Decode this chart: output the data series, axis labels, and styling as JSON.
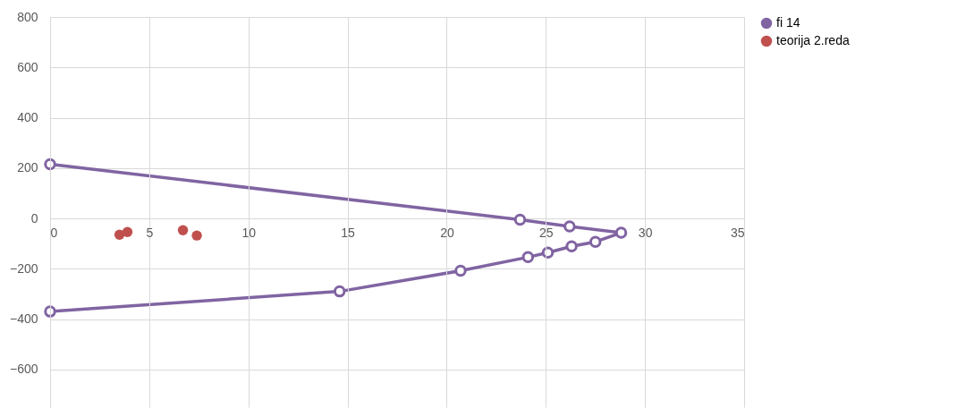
{
  "chart_data": {
    "type": "line",
    "xlim": [
      0,
      35
    ],
    "xticks": [
      0,
      5,
      10,
      15,
      20,
      25,
      30,
      35
    ],
    "ylim": [
      -750,
      800
    ],
    "yticks": [
      -600,
      -400,
      -200,
      0,
      200,
      400,
      600,
      800
    ],
    "grid": true,
    "legend": "right",
    "series": [
      {
        "name": "fi 14",
        "marker": "circle",
        "color": "#8064a2",
        "x": [
          0,
          23.7,
          26.2,
          28.8,
          27.5,
          26.3,
          25.1,
          24.1,
          20.7,
          14.6,
          0
        ],
        "values": [
          215,
          -5,
          -32,
          -57,
          -93,
          -111,
          -136,
          -154,
          -208,
          -290,
          -370
        ]
      },
      {
        "name": "teorija 2.reda",
        "type": "scatter",
        "marker": "circle",
        "color": "#c0504d",
        "x": [
          3.5,
          3.9,
          6.7,
          7.4
        ],
        "values": [
          -65,
          -54,
          -47,
          -68
        ]
      }
    ]
  }
}
